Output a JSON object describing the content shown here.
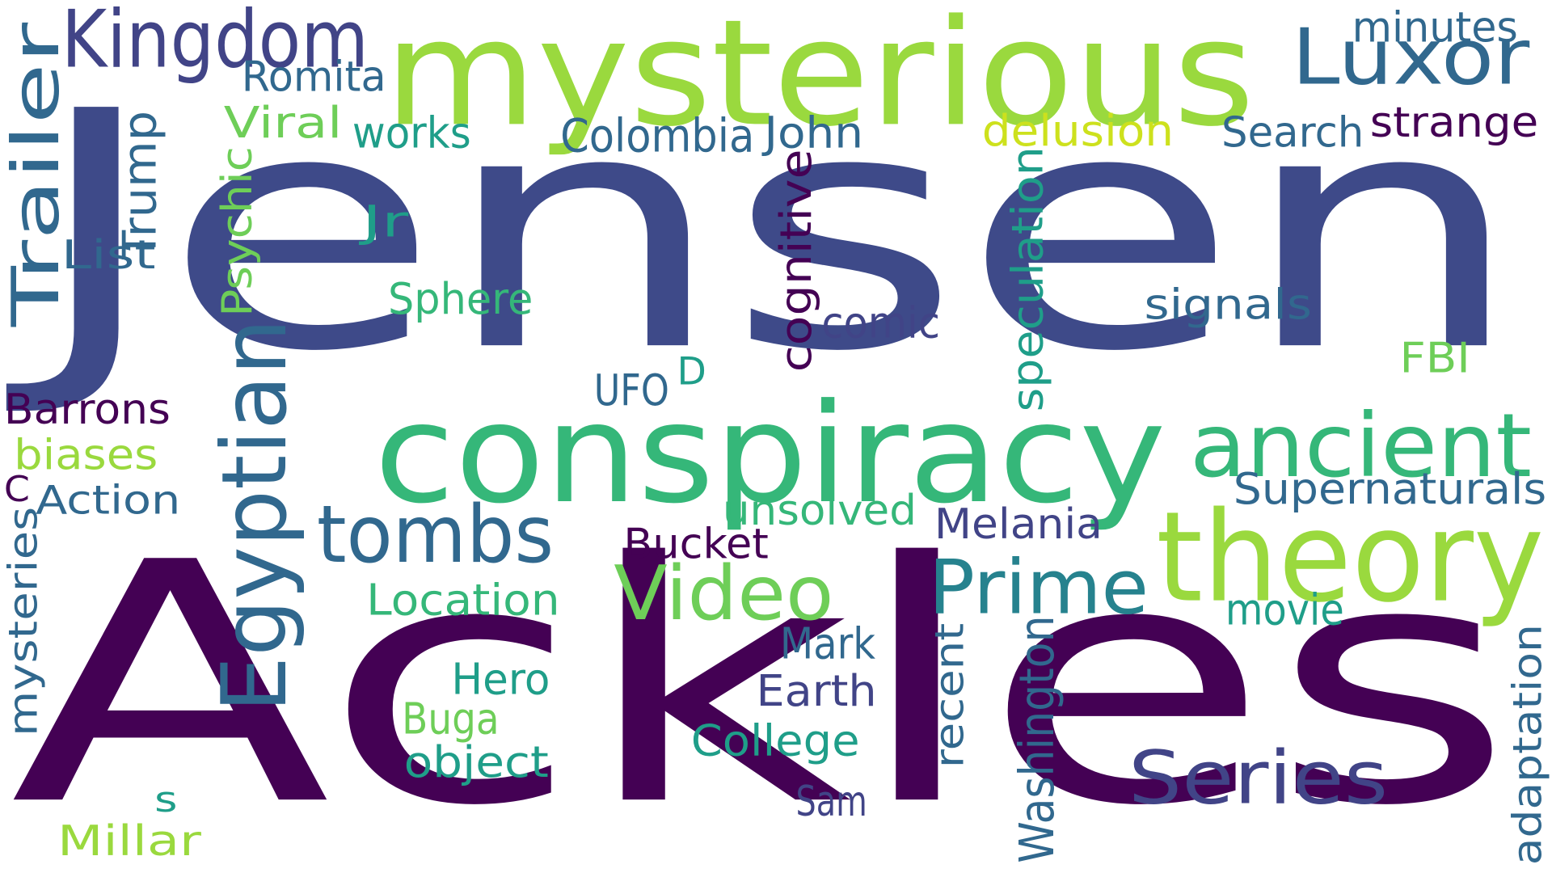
{
  "palette": {
    "dark_purple": "#440154",
    "indigo": "#3e4a89",
    "blue_purple": "#414487",
    "steel_blue": "#31688e",
    "teal": "#26828e",
    "green_teal": "#1f9e89",
    "green": "#35b779",
    "light_green": "#6ece58",
    "lime": "#9ad93e",
    "yellow_green": "#cde11d"
  },
  "words": [
    {
      "id": "jensen",
      "text": "Jensen"
    },
    {
      "id": "ackles",
      "text": "Ackles"
    },
    {
      "id": "mysterious",
      "text": "mysterious"
    },
    {
      "id": "conspiracy",
      "text": "conspiracy"
    },
    {
      "id": "theory",
      "text": "theory"
    },
    {
      "id": "ancient",
      "text": "ancient"
    },
    {
      "id": "kingdom",
      "text": "Kingdom"
    },
    {
      "id": "luxor",
      "text": "Luxor"
    },
    {
      "id": "trailer",
      "text": "Trailer"
    },
    {
      "id": "egyptian",
      "text": "Egyptian"
    },
    {
      "id": "tombs",
      "text": "tombs"
    },
    {
      "id": "video",
      "text": "Video"
    },
    {
      "id": "prime",
      "text": "Prime"
    },
    {
      "id": "series",
      "text": "Series"
    },
    {
      "id": "romita",
      "text": "Romita"
    },
    {
      "id": "minutes",
      "text": "minutes"
    },
    {
      "id": "strange",
      "text": "strange"
    },
    {
      "id": "search",
      "text": "Search"
    },
    {
      "id": "delusion",
      "text": "delusion"
    },
    {
      "id": "john",
      "text": "John"
    },
    {
      "id": "colombia",
      "text": "Colombia"
    },
    {
      "id": "works",
      "text": "works"
    },
    {
      "id": "viral",
      "text": "Viral"
    },
    {
      "id": "trump",
      "text": "Trump"
    },
    {
      "id": "psychic",
      "text": "Psychic"
    },
    {
      "id": "jr",
      "text": "Jr"
    },
    {
      "id": "list",
      "text": "List"
    },
    {
      "id": "sphere",
      "text": "Sphere"
    },
    {
      "id": "cognitive",
      "text": "cognitive"
    },
    {
      "id": "speculation",
      "text": "speculation"
    },
    {
      "id": "signals",
      "text": "signals"
    },
    {
      "id": "comic",
      "text": "comic"
    },
    {
      "id": "fbi",
      "text": "FBI"
    },
    {
      "id": "d",
      "text": "D"
    },
    {
      "id": "ufo",
      "text": "UFO"
    },
    {
      "id": "barrons",
      "text": "Barrons"
    },
    {
      "id": "biases",
      "text": "biases"
    },
    {
      "id": "c",
      "text": "C"
    },
    {
      "id": "action",
      "text": "Action"
    },
    {
      "id": "supernaturals",
      "text": "Supernaturals"
    },
    {
      "id": "unsolved",
      "text": "unsolved"
    },
    {
      "id": "melania",
      "text": "Melania"
    },
    {
      "id": "bucket",
      "text": "Bucket"
    },
    {
      "id": "location",
      "text": "Location"
    },
    {
      "id": "movie",
      "text": "movie"
    },
    {
      "id": "mysteries",
      "text": "mysteries"
    },
    {
      "id": "mark",
      "text": "Mark"
    },
    {
      "id": "hero",
      "text": "Hero"
    },
    {
      "id": "earth",
      "text": "Earth"
    },
    {
      "id": "recent",
      "text": "recent"
    },
    {
      "id": "washington",
      "text": "Washington"
    },
    {
      "id": "adaptation",
      "text": "adaptation"
    },
    {
      "id": "buga",
      "text": "Buga"
    },
    {
      "id": "college",
      "text": "College"
    },
    {
      "id": "object",
      "text": "object"
    },
    {
      "id": "s",
      "text": "s"
    },
    {
      "id": "sam",
      "text": "Sam"
    },
    {
      "id": "millar",
      "text": "Millar"
    }
  ]
}
